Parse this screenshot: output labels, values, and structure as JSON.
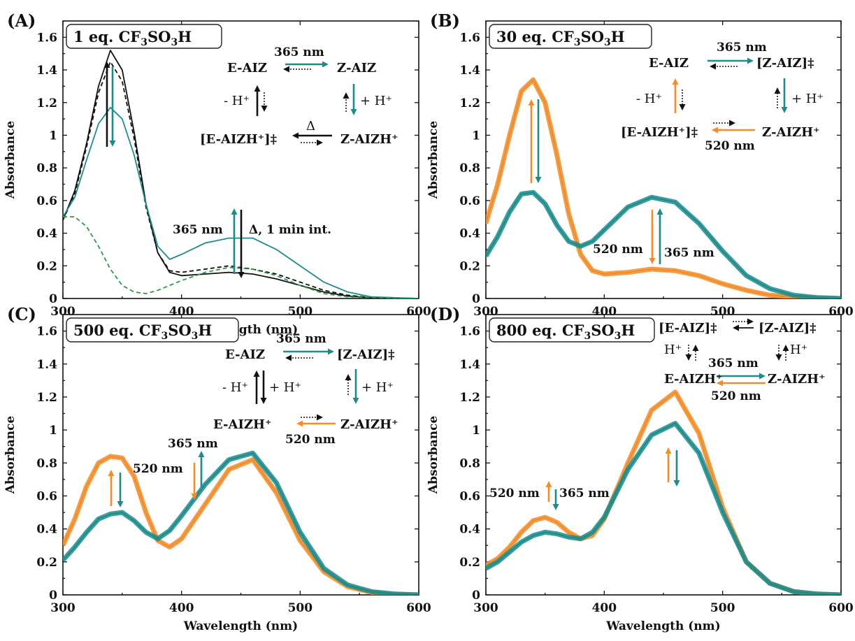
{
  "colors": {
    "orange": "#F28C28",
    "teal": "#1B8C8C",
    "black": "#111111",
    "green": "#2E9A4A",
    "blue": "#3A55B4",
    "red": "#E03030"
  },
  "chart_data": [
    {
      "panel": "(A)",
      "type": "line",
      "box_label": "1 eq. CF3SO3H",
      "box_main": "1 eq. CF",
      "box_sub1": "3",
      "box_mid": "SO",
      "box_sub2": "3",
      "box_tail": "H",
      "xlabel": "Wavelength (nm)",
      "ylabel": "Absorbance",
      "xlim": [
        300,
        600
      ],
      "ylim": [
        0,
        1.7
      ],
      "xticks": [
        "300",
        "400",
        "500",
        "600"
      ],
      "yticks": [
        "0",
        "0.2",
        "0.4",
        "0.6",
        "0.8",
        "1",
        "1.2",
        "1.4",
        "1.6"
      ],
      "series": [
        {
          "color": "black",
          "dash": false,
          "x": [
            300,
            310,
            320,
            330,
            340,
            350,
            360,
            370,
            380,
            390,
            400,
            420,
            440,
            460,
            480,
            500,
            520,
            540,
            560,
            600
          ],
          "y": [
            0.48,
            0.66,
            0.95,
            1.3,
            1.52,
            1.4,
            1.02,
            0.58,
            0.28,
            0.16,
            0.14,
            0.15,
            0.16,
            0.15,
            0.12,
            0.08,
            0.04,
            0.015,
            0.005,
            0
          ]
        },
        {
          "color": "black",
          "dash": true,
          "x": [
            300,
            310,
            320,
            330,
            340,
            350,
            360,
            370,
            380,
            390,
            400,
            420,
            440,
            460,
            480,
            500,
            520,
            540,
            560,
            600
          ],
          "y": [
            0.48,
            0.64,
            0.93,
            1.26,
            1.45,
            1.33,
            0.98,
            0.56,
            0.28,
            0.17,
            0.16,
            0.18,
            0.2,
            0.18,
            0.15,
            0.1,
            0.05,
            0.02,
            0.005,
            0
          ]
        },
        {
          "color": "teal",
          "dash": false,
          "x": [
            300,
            310,
            320,
            330,
            340,
            350,
            360,
            370,
            380,
            390,
            400,
            420,
            440,
            460,
            480,
            500,
            520,
            540,
            560,
            600
          ],
          "y": [
            0.5,
            0.62,
            0.85,
            1.07,
            1.17,
            1.1,
            0.88,
            0.58,
            0.32,
            0.24,
            0.27,
            0.34,
            0.37,
            0.37,
            0.3,
            0.2,
            0.1,
            0.04,
            0.01,
            0
          ]
        },
        {
          "color": "green",
          "dash": true,
          "x": [
            300,
            310,
            320,
            330,
            340,
            350,
            360,
            370,
            380,
            390,
            400,
            420,
            440,
            460,
            480,
            500,
            520,
            540,
            600
          ],
          "y": [
            0.5,
            0.5,
            0.44,
            0.32,
            0.18,
            0.08,
            0.04,
            0.03,
            0.05,
            0.08,
            0.11,
            0.16,
            0.19,
            0.18,
            0.14,
            0.08,
            0.03,
            0.01,
            0
          ]
        }
      ],
      "labels": {
        "wl_365": "365 nm",
        "heat": "Δ, 1 min int.",
        "e_aiz": "E-AIZ",
        "z_aiz": "Z-AIZ",
        "e_aizh": "[E-AIZH⁺]‡",
        "z_aizh": "Z-AIZH⁺",
        "minus_h": "- H⁺",
        "plus_h": "+ H⁺",
        "delta": "Δ"
      }
    },
    {
      "panel": "(B)",
      "type": "line",
      "box_label": "30 eq. CF3SO3H",
      "box_main": "30 eq. CF",
      "box_sub1": "3",
      "box_mid": "SO",
      "box_sub2": "3",
      "box_tail": "H",
      "xlabel": "",
      "ylabel": "Absorbance",
      "xlim": [
        300,
        600
      ],
      "ylim": [
        0,
        1.7
      ],
      "xticks": [
        "300",
        "400",
        "500",
        "600"
      ],
      "yticks": [
        "0",
        "0.2",
        "0.4",
        "0.6",
        "0.8",
        "1",
        "1.2",
        "1.4",
        "1.6"
      ],
      "series": [
        {
          "color": "orange",
          "dash": false,
          "x": [
            300,
            310,
            320,
            330,
            340,
            350,
            360,
            370,
            380,
            390,
            400,
            420,
            440,
            460,
            480,
            500,
            520,
            540,
            560,
            580,
            600
          ],
          "y": [
            0.46,
            0.7,
            1.0,
            1.27,
            1.34,
            1.2,
            0.88,
            0.52,
            0.27,
            0.17,
            0.15,
            0.16,
            0.18,
            0.17,
            0.14,
            0.09,
            0.05,
            0.02,
            0.01,
            0.003,
            0
          ]
        },
        {
          "color": "teal",
          "dash": false,
          "x": [
            300,
            310,
            320,
            330,
            340,
            350,
            360,
            370,
            380,
            390,
            400,
            420,
            440,
            460,
            480,
            500,
            520,
            540,
            560,
            580,
            600
          ],
          "y": [
            0.26,
            0.38,
            0.53,
            0.64,
            0.65,
            0.58,
            0.45,
            0.35,
            0.32,
            0.35,
            0.42,
            0.56,
            0.62,
            0.59,
            0.46,
            0.29,
            0.14,
            0.06,
            0.02,
            0.005,
            0
          ]
        }
      ],
      "labels": {
        "wl_365": "365 nm",
        "wl_520": "520 nm",
        "e_aiz": "E-AIZ",
        "z_aiz": "[Z-AIZ]‡",
        "e_aizh": "[E-AIZH⁺]‡",
        "z_aizh": "Z-AIZH⁺",
        "minus_h": "- H⁺",
        "plus_h": "+ H⁺"
      }
    },
    {
      "panel": "(C)",
      "type": "line",
      "box_label": "500 eq. CF3SO3H",
      "box_main": "500 eq. CF",
      "box_sub1": "3",
      "box_mid": "SO",
      "box_sub2": "3",
      "box_tail": "H",
      "xlabel": "Wavelength (nm)",
      "ylabel": "Absorbance",
      "xlim": [
        300,
        600
      ],
      "ylim": [
        0,
        1.7
      ],
      "xticks": [
        "300",
        "400",
        "500",
        "600"
      ],
      "yticks": [
        "0",
        "0.2",
        "0.4",
        "0.6",
        "0.8",
        "1",
        "1.2",
        "1.4",
        "1.6"
      ],
      "series": [
        {
          "color": "orange",
          "dash": false,
          "x": [
            300,
            310,
            320,
            330,
            340,
            350,
            360,
            370,
            380,
            390,
            400,
            420,
            440,
            460,
            480,
            500,
            520,
            540,
            560,
            580,
            600
          ],
          "y": [
            0.3,
            0.46,
            0.66,
            0.8,
            0.84,
            0.83,
            0.72,
            0.5,
            0.33,
            0.29,
            0.34,
            0.55,
            0.76,
            0.82,
            0.62,
            0.33,
            0.14,
            0.05,
            0.015,
            0.004,
            0
          ]
        },
        {
          "color": "teal",
          "dash": false,
          "x": [
            300,
            310,
            320,
            330,
            340,
            350,
            360,
            370,
            380,
            390,
            400,
            420,
            440,
            460,
            480,
            500,
            520,
            540,
            560,
            580,
            600
          ],
          "y": [
            0.21,
            0.29,
            0.38,
            0.46,
            0.49,
            0.5,
            0.45,
            0.38,
            0.34,
            0.39,
            0.48,
            0.67,
            0.82,
            0.86,
            0.68,
            0.38,
            0.16,
            0.06,
            0.02,
            0.005,
            0
          ]
        }
      ],
      "labels": {
        "wl_365": "365 nm",
        "wl_520": "520 nm",
        "e_aiz": "E-AIZ",
        "z_aiz": "[Z-AIZ]‡",
        "e_aizh": "E-AIZH⁺",
        "z_aizh": "Z-AIZH⁺",
        "minus_h": "- H⁺",
        "plus_h": "+ H⁺",
        "plus_h2": "+ H⁺"
      }
    },
    {
      "panel": "(D)",
      "type": "line",
      "box_label": "800 eq. CF3SO3H",
      "box_main": "800 eq. CF",
      "box_sub1": "3",
      "box_mid": "SO",
      "box_sub2": "3",
      "box_tail": "H",
      "xlabel": "Wavelength (nm)",
      "ylabel": "Absorbance",
      "xlim": [
        300,
        600
      ],
      "ylim": [
        0,
        1.7
      ],
      "xticks": [
        "300",
        "400",
        "500",
        "600"
      ],
      "yticks": [
        "0",
        "0.2",
        "0.4",
        "0.6",
        "0.8",
        "1",
        "1.2",
        "1.4",
        "1.6"
      ],
      "series": [
        {
          "color": "orange",
          "dash": false,
          "x": [
            300,
            310,
            320,
            330,
            340,
            350,
            360,
            370,
            380,
            390,
            400,
            420,
            440,
            460,
            480,
            500,
            520,
            540,
            560,
            580,
            600
          ],
          "y": [
            0.18,
            0.22,
            0.29,
            0.38,
            0.45,
            0.47,
            0.44,
            0.38,
            0.34,
            0.36,
            0.46,
            0.8,
            1.12,
            1.23,
            0.98,
            0.53,
            0.2,
            0.07,
            0.02,
            0.005,
            0
          ]
        },
        {
          "color": "teal",
          "dash": false,
          "x": [
            300,
            310,
            320,
            330,
            340,
            350,
            360,
            370,
            380,
            390,
            400,
            420,
            440,
            460,
            480,
            500,
            520,
            540,
            560,
            580,
            600
          ],
          "y": [
            0.16,
            0.2,
            0.26,
            0.32,
            0.36,
            0.38,
            0.37,
            0.35,
            0.34,
            0.38,
            0.47,
            0.76,
            0.97,
            1.04,
            0.86,
            0.5,
            0.2,
            0.07,
            0.02,
            0.005,
            0
          ]
        }
      ],
      "labels": {
        "wl_365": "365 nm",
        "wl_520": "520 nm",
        "e_aiz": "[E-AIZ]‡",
        "z_aiz": "[Z-AIZ]‡",
        "e_aizh": "E-AIZH⁺",
        "z_aizh": "Z-AIZH⁺",
        "h_left": "H⁺",
        "h_right": "H⁺",
        "wl_365_b": "365 nm",
        "wl_520_b": "520 nm"
      }
    }
  ]
}
